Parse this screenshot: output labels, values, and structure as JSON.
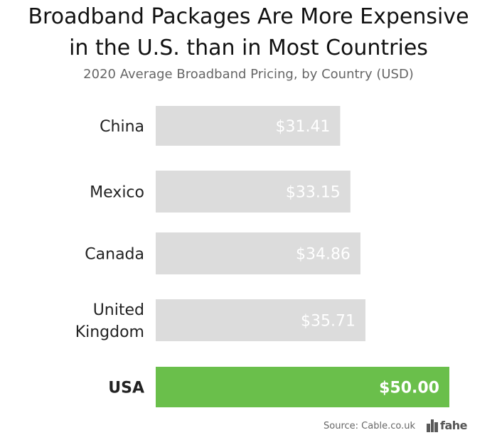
{
  "chart_data": {
    "type": "bar",
    "orientation": "horizontal",
    "title_line1": "Broadband Packages Are More Expensive",
    "title_line2": "in the U.S. than in Most Countries",
    "subtitle": "2020 Average Broadband Pricing, by Country (USD)",
    "categories": [
      [
        "China"
      ],
      [
        "Mexico"
      ],
      [
        "Canada"
      ],
      [
        "United",
        "Kingdom"
      ],
      [
        "USA"
      ]
    ],
    "values": [
      31.41,
      33.15,
      34.86,
      35.71,
      50.0
    ],
    "value_labels": [
      "$31.41",
      "$33.15",
      "$34.86",
      "$35.71",
      "$50.00"
    ],
    "highlight_index": 4,
    "colors": {
      "bar": "#dcdcdc",
      "highlight": "#6abf4b",
      "label_on_bar": "#ffffff",
      "category_text": "#222222"
    },
    "xlim": [
      0,
      50
    ],
    "grid": false,
    "legend": "none"
  },
  "footer": {
    "source": "Source: Cable.co.uk",
    "logo_text": "fahe"
  }
}
